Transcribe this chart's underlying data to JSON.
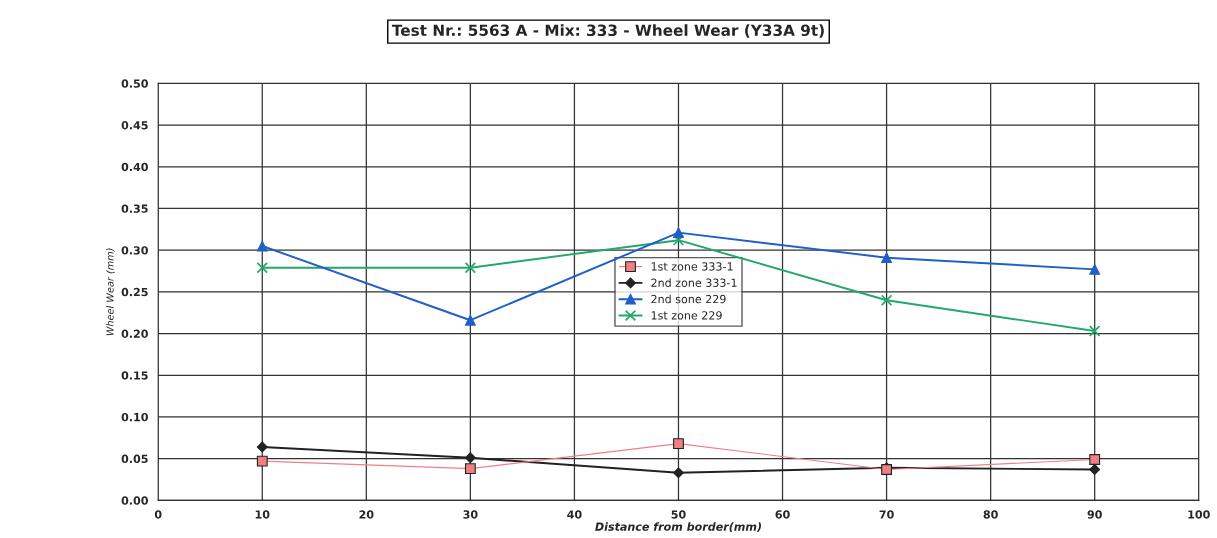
{
  "chart_data": {
    "type": "line",
    "title": "Test Nr.: 5563 A - Mix: 333 - Wheel Wear (Y33A 9t)",
    "xlabel": "Distance from border(mm)",
    "ylabel": "Wheel Wear (mm)",
    "x": [
      10,
      30,
      50,
      70,
      90
    ],
    "series": [
      {
        "name": "1st zone 333-1",
        "color": "#f08080",
        "marker": "square",
        "values": [
          0.047,
          0.038,
          0.068,
          0.037,
          0.049
        ]
      },
      {
        "name": "2nd zone 333-1",
        "color": "#222222",
        "marker": "diamond",
        "values": [
          0.064,
          0.051,
          0.033,
          0.039,
          0.037
        ]
      },
      {
        "name": "2nd sone 229",
        "color": "#1f5fc8",
        "marker": "triangle",
        "values": [
          0.305,
          0.216,
          0.321,
          0.291,
          0.277
        ]
      },
      {
        "name": "1st zone 229",
        "color": "#22a86a",
        "marker": "cross",
        "values": [
          0.279,
          0.279,
          0.312,
          0.24,
          0.203
        ]
      }
    ],
    "xlim": [
      0,
      100
    ],
    "xticks": [
      0,
      10,
      20,
      30,
      40,
      50,
      60,
      70,
      80,
      90,
      100
    ],
    "ylim": [
      0,
      0.5
    ],
    "yticks": [
      {
        "value": 0,
        "label": "0.00"
      },
      {
        "value": 0.05,
        "label": "0.05"
      },
      {
        "value": 0.1,
        "label": "0.10"
      },
      {
        "value": 0.15,
        "label": "0.15"
      },
      {
        "value": 0.2,
        "label": "0.20"
      },
      {
        "value": 0.25,
        "label": "0.25"
      },
      {
        "value": 0.3,
        "label": "0.30"
      },
      {
        "value": 0.35,
        "label": "0.35"
      },
      {
        "value": 0.4,
        "label": "0.40"
      },
      {
        "value": 0.45,
        "label": "0.45"
      },
      {
        "value": 0.5,
        "label": "0.50"
      }
    ],
    "grid": true,
    "legend": "center"
  }
}
